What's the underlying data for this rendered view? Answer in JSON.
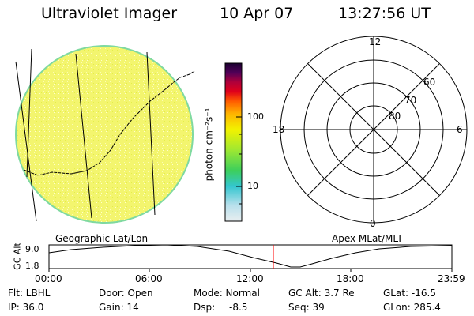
{
  "header": {
    "title": "Ultraviolet Imager",
    "date": "10 Apr 07",
    "time": "13:27:56 UT"
  },
  "colorbar": {
    "unit_label": "photon cm⁻²s⁻¹",
    "tick_100": "100",
    "tick_10": "10"
  },
  "polar": {
    "hour_labels": {
      "top": "12",
      "left": "18",
      "right": "6",
      "bottom": "0"
    },
    "lat_labels": [
      "60",
      "70",
      "80"
    ]
  },
  "labels": {
    "left_frame": "Geographic Lat/Lon",
    "right_frame": "Apex MLat/MLT"
  },
  "altitude_plot": {
    "axis_label": "GC Alt",
    "y_max": "9.0",
    "y_min": "1.8",
    "x_ticks": [
      "00:00",
      "06:00",
      "12:00",
      "18:00",
      "23:59"
    ],
    "current_time_marker": "13:27:56",
    "marker_color": "#ff0000"
  },
  "status": {
    "flt": "Flt: LBHL",
    "door": "Door: Open",
    "mode": "Mode: Normal",
    "gc_alt": "GC Alt: 3.7 Re",
    "glat": "GLat: -16.5",
    "ip": "IP: 36.0",
    "gain": "Gain: 14",
    "dsp_label": "Dsp:",
    "dsp_value": "-8.5",
    "seq": "Seq: 39",
    "glon": "GLon: 285.4"
  },
  "colors": {
    "disk_fill": "#f2f570",
    "disk_edge": "#7fd9a0",
    "background": "#ffffff"
  }
}
